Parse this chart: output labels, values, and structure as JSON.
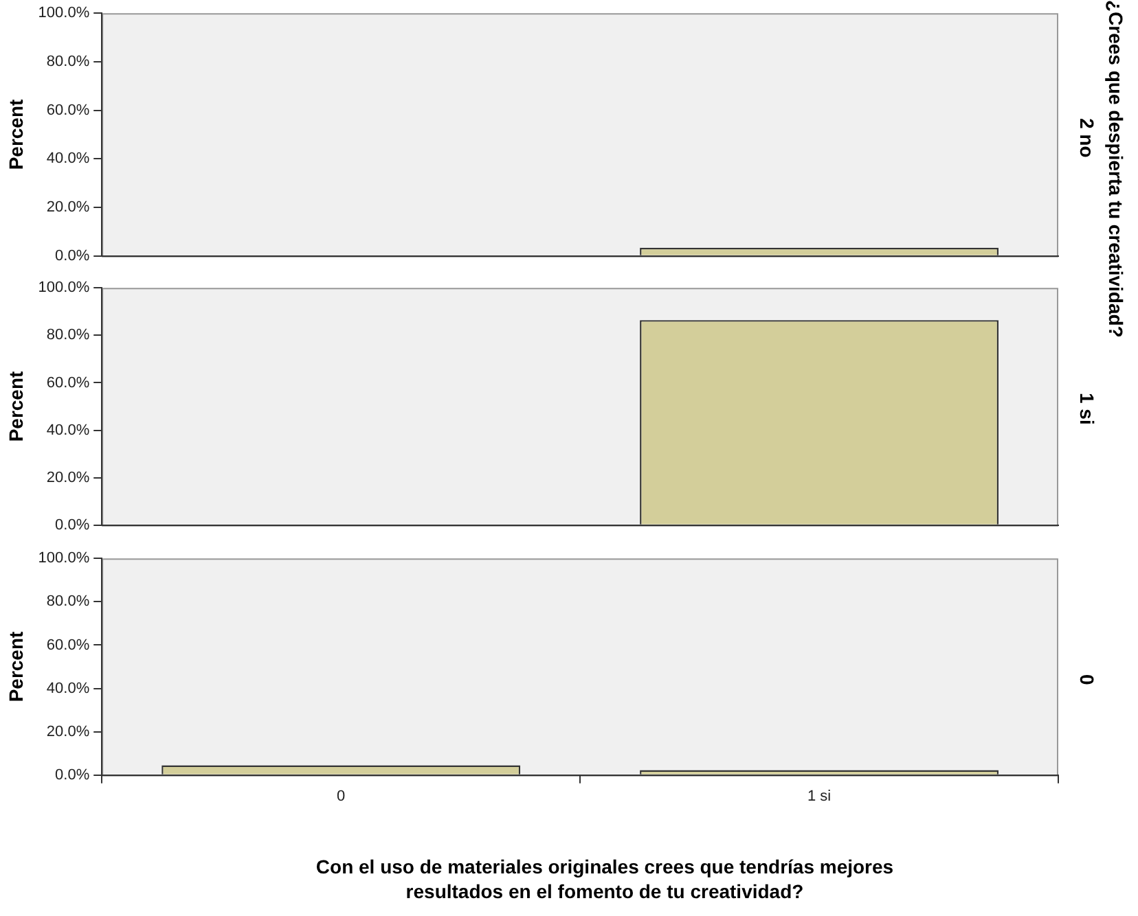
{
  "chart_data": [
    {
      "type": "bar",
      "ylabel": "Percent",
      "y2label": "2 no",
      "categories": [
        null,
        null
      ],
      "values": [
        null,
        3.4
      ],
      "color": "#d3ce9a",
      "ylim": [
        0,
        100
      ],
      "yticks": [
        {
          "value": 0,
          "label": "0.0%"
        },
        {
          "value": 20,
          "label": "20.0%"
        },
        {
          "value": 40,
          "label": "40.0%"
        },
        {
          "value": 60,
          "label": "60.0%"
        },
        {
          "value": 80,
          "label": "80.0%"
        },
        {
          "value": 100,
          "label": "100.0%"
        }
      ],
      "tick_labels": "y"
    },
    {
      "type": "bar",
      "ylabel": "Percent",
      "y2label": "1 si",
      "categories": [
        null,
        null
      ],
      "values": [
        null,
        86.4
      ],
      "color": "#d3ce9a",
      "ylim": [
        0,
        100
      ],
      "yticks": [
        {
          "value": 0,
          "label": "0.0%"
        },
        {
          "value": 20,
          "label": "20.0%"
        },
        {
          "value": 40,
          "label": "40.0%"
        },
        {
          "value": 60,
          "label": "60.0%"
        },
        {
          "value": 80,
          "label": "80.0%"
        },
        {
          "value": 100,
          "label": "100.0%"
        }
      ],
      "tick_labels": "y",
      "annotations": [
        "¿Crees que despierta tu creatividad?"
      ]
    },
    {
      "type": "bar",
      "ylabel": "Percent",
      "y2label": "0",
      "xlabel": "Con el uso de materiales originales crees que tendrías mejores resultados en el fomento de tu creatividad?",
      "categories": [
        "0",
        "1 si"
      ],
      "values": [
        4.5,
        2.3
      ],
      "color": "#d3ce9a",
      "ylim": [
        0,
        100
      ],
      "yticks": [
        {
          "value": 0,
          "label": "0.0%"
        },
        {
          "value": 20,
          "label": "20.0%"
        },
        {
          "value": 40,
          "label": "40.0%"
        },
        {
          "value": 60,
          "label": "60.0%"
        },
        {
          "value": 80,
          "label": "80.0%"
        },
        {
          "value": 100,
          "label": "100.0%"
        }
      ]
    }
  ]
}
